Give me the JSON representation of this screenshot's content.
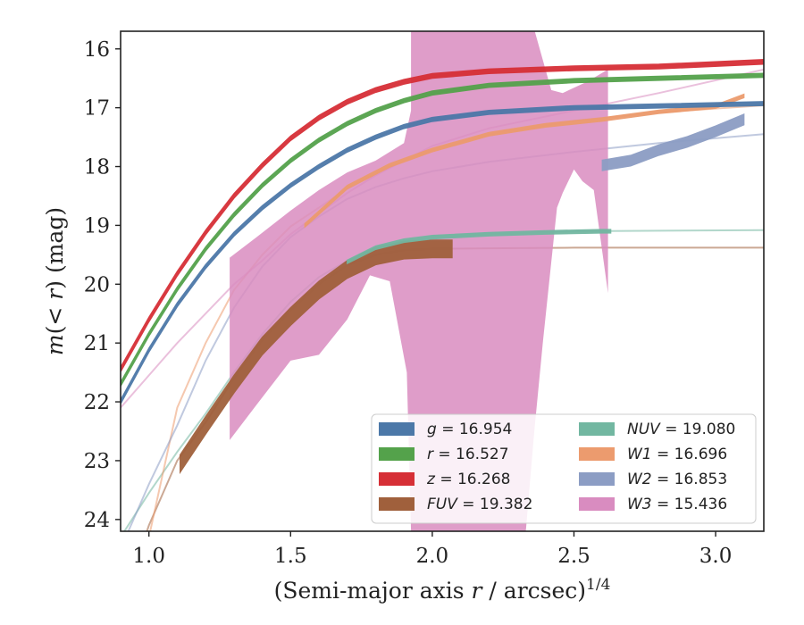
{
  "chart_data": {
    "type": "line",
    "xlabel": "(Semi-major axis r / arcsec)^{1/4}",
    "ylabel": "m(< r) (mag)",
    "xlim": [
      0.9,
      3.17
    ],
    "ylim": [
      24.2,
      15.7
    ],
    "y_inverted": true,
    "xticks": [
      "1.0",
      "1.5",
      "2.0",
      "2.5",
      "3.0"
    ],
    "yticks": [
      "16",
      "17",
      "18",
      "19",
      "20",
      "21",
      "22",
      "23",
      "24"
    ],
    "legend_position": "lower-right",
    "legend_columns": 2,
    "series": [
      {
        "name": "g = 16.954",
        "band": "g",
        "mag": "16.954",
        "color": "#4c78a8",
        "kind": "band",
        "x": [
          0.9,
          1.0,
          1.1,
          1.2,
          1.3,
          1.4,
          1.5,
          1.6,
          1.7,
          1.8,
          1.9,
          2.0,
          2.2,
          2.5,
          2.8,
          3.17
        ],
        "y": [
          22.0,
          21.12,
          20.35,
          19.7,
          19.15,
          18.7,
          18.32,
          18.0,
          17.72,
          17.5,
          17.32,
          17.2,
          17.08,
          17.0,
          16.97,
          16.93
        ],
        "w": 0.07,
        "fit_x": [],
        "fit_y": []
      },
      {
        "name": "r = 16.527",
        "band": "r",
        "mag": "16.527",
        "color": "#54a24b",
        "kind": "band",
        "x": [
          0.9,
          1.0,
          1.1,
          1.2,
          1.3,
          1.4,
          1.5,
          1.6,
          1.7,
          1.8,
          1.9,
          2.0,
          2.2,
          2.5,
          2.8,
          3.17
        ],
        "y": [
          21.7,
          20.85,
          20.08,
          19.4,
          18.82,
          18.32,
          17.9,
          17.55,
          17.27,
          17.05,
          16.88,
          16.75,
          16.62,
          16.54,
          16.5,
          16.45
        ],
        "w": 0.07,
        "fit_x": [],
        "fit_y": []
      },
      {
        "name": "z = 16.268",
        "band": "z",
        "mag": "16.268",
        "color": "#d62f36",
        "kind": "band",
        "x": [
          0.9,
          1.0,
          1.1,
          1.2,
          1.3,
          1.4,
          1.5,
          1.6,
          1.7,
          1.8,
          1.9,
          2.0,
          2.2,
          2.5,
          2.8,
          3.17
        ],
        "y": [
          21.45,
          20.6,
          19.82,
          19.12,
          18.5,
          17.98,
          17.52,
          17.17,
          16.9,
          16.7,
          16.56,
          16.46,
          16.38,
          16.33,
          16.3,
          16.22
        ],
        "w": 0.08,
        "fit_x": [],
        "fit_y": []
      },
      {
        "name": "FUV = 19.382",
        "band": "FUV",
        "mag": "19.382",
        "color": "#a0603c",
        "kind": "band",
        "x": [
          1.11,
          1.2,
          1.3,
          1.4,
          1.5,
          1.6,
          1.7,
          1.8,
          1.9,
          2.0,
          2.07
        ],
        "y": [
          23.05,
          22.4,
          21.7,
          21.05,
          20.55,
          20.1,
          19.75,
          19.52,
          19.42,
          19.4,
          19.4
        ],
        "w": 0.3,
        "fit_x": [
          0.9,
          1.0,
          1.1,
          1.2,
          1.3,
          1.4,
          1.5,
          1.6,
          1.7,
          1.8,
          1.9,
          2.0,
          2.2,
          2.5,
          3.17
        ],
        "fit_y": [
          25.5,
          24.1,
          23.0,
          22.35,
          21.6,
          20.95,
          20.45,
          20.0,
          19.68,
          19.5,
          19.42,
          19.4,
          19.39,
          19.38,
          19.38
        ]
      },
      {
        "name": "NUV = 19.080",
        "band": "NUV",
        "mag": "19.080",
        "color": "#72b7a1",
        "kind": "band",
        "x": [
          1.7,
          1.8,
          1.9,
          2.0,
          2.2,
          2.4,
          2.6,
          2.63
        ],
        "y": [
          19.62,
          19.38,
          19.26,
          19.2,
          19.15,
          19.12,
          19.1,
          19.1
        ],
        "w": 0.06,
        "fit_x": [
          0.9,
          1.0,
          1.1,
          1.2,
          1.3,
          1.4,
          1.5,
          1.6,
          1.7,
          1.8,
          1.9,
          2.0,
          2.2,
          2.5,
          3.17
        ],
        "fit_y": [
          24.3,
          23.55,
          22.85,
          22.2,
          21.5,
          20.85,
          20.3,
          19.88,
          19.6,
          19.4,
          19.27,
          19.2,
          19.13,
          19.1,
          19.08
        ]
      },
      {
        "name": "W1 = 16.696",
        "band": "W1",
        "mag": "16.696",
        "color": "#ec9b6e",
        "kind": "band",
        "x": [
          1.55,
          1.7,
          1.85,
          2.0,
          2.2,
          2.4,
          2.6,
          2.8,
          3.0,
          3.1
        ],
        "y": [
          19.0,
          18.35,
          17.98,
          17.72,
          17.45,
          17.3,
          17.2,
          17.07,
          16.98,
          16.8
        ],
        "w": 0.06,
        "fit_x": [
          0.9,
          1.0,
          1.1,
          1.2,
          1.3,
          1.4,
          1.5,
          1.6,
          1.7,
          1.8,
          1.9,
          2.0,
          2.2,
          2.5,
          2.8,
          3.17
        ],
        "fit_y": [
          26.0,
          24.3,
          22.1,
          21.0,
          20.1,
          19.5,
          19.02,
          18.7,
          18.38,
          18.12,
          17.9,
          17.72,
          17.45,
          17.22,
          17.08,
          16.96
        ]
      },
      {
        "name": "W2 = 16.853",
        "band": "W2",
        "mag": "16.853",
        "color": "#8c9dc4",
        "kind": "band",
        "x": [
          2.6,
          2.7,
          2.8,
          2.9,
          3.0,
          3.1
        ],
        "y": [
          17.98,
          17.9,
          17.72,
          17.58,
          17.4,
          17.2
        ],
        "w": 0.18,
        "fit_x": [
          0.9,
          1.0,
          1.1,
          1.2,
          1.3,
          1.4,
          1.5,
          1.6,
          1.7,
          1.8,
          1.9,
          2.0,
          2.2,
          2.5,
          2.8,
          3.17
        ],
        "fit_y": [
          24.5,
          23.4,
          22.4,
          21.3,
          20.4,
          19.7,
          19.2,
          18.85,
          18.55,
          18.35,
          18.2,
          18.08,
          17.92,
          17.75,
          17.6,
          17.45
        ]
      },
      {
        "name": "W3 = 15.436",
        "band": "W3",
        "mag": "15.436",
        "color": "#d98cc0",
        "kind": "poly",
        "poly_x": [
          1.285,
          1.38,
          1.5,
          1.6,
          1.7,
          1.8,
          1.9,
          1.925,
          1.925,
          1.96,
          2.1,
          2.21,
          2.35,
          2.42,
          2.46,
          2.55,
          2.62,
          2.62,
          2.57,
          2.53,
          2.5,
          2.46,
          2.44,
          2.39,
          2.36,
          2.33,
          2.3,
          2.25,
          2.2,
          2.15,
          2.1,
          2.05,
          2.0,
          1.95,
          1.93,
          1.925,
          1.91,
          1.85,
          1.78,
          1.7,
          1.6,
          1.5,
          1.38,
          1.285
        ],
        "poly_y": [
          19.55,
          19.2,
          18.75,
          18.4,
          18.1,
          17.9,
          17.6,
          17.05,
          15.5,
          15.5,
          15.5,
          15.5,
          15.5,
          16.7,
          16.75,
          16.55,
          16.35,
          20.15,
          18.4,
          18.25,
          18.05,
          18.45,
          18.7,
          21.0,
          22.5,
          24.2,
          24.2,
          24.2,
          24.2,
          24.2,
          24.2,
          24.2,
          24.2,
          24.2,
          24.2,
          24.2,
          21.5,
          19.95,
          19.85,
          20.6,
          21.2,
          21.3,
          22.05,
          22.65
        ],
        "fit_x": [
          0.9,
          1.0,
          1.1,
          1.2,
          1.3,
          1.4,
          1.5,
          1.6,
          1.7,
          1.8,
          1.9,
          2.0,
          2.2,
          2.5,
          2.8,
          3.17
        ],
        "fit_y": [
          22.1,
          21.55,
          21.0,
          20.5,
          20.0,
          19.6,
          19.15,
          18.8,
          18.45,
          18.15,
          17.9,
          17.65,
          17.35,
          17.05,
          16.75,
          16.35
        ]
      }
    ]
  },
  "legend": {
    "entries": [
      {
        "sym": "g",
        "val": "16.954",
        "color": "#4c78a8"
      },
      {
        "sym": "r",
        "val": "16.527",
        "color": "#54a24b"
      },
      {
        "sym": "z",
        "val": "16.268",
        "color": "#d62f36"
      },
      {
        "sym": "FUV",
        "val": "19.382",
        "color": "#a0603c"
      },
      {
        "sym": "NUV",
        "val": "19.080",
        "color": "#72b7a1"
      },
      {
        "sym": "W1",
        "val": "16.696",
        "color": "#ec9b6e"
      },
      {
        "sym": "W2",
        "val": "16.853",
        "color": "#8c9dc4"
      },
      {
        "sym": "W3",
        "val": "15.436",
        "color": "#d98cc0"
      }
    ]
  }
}
